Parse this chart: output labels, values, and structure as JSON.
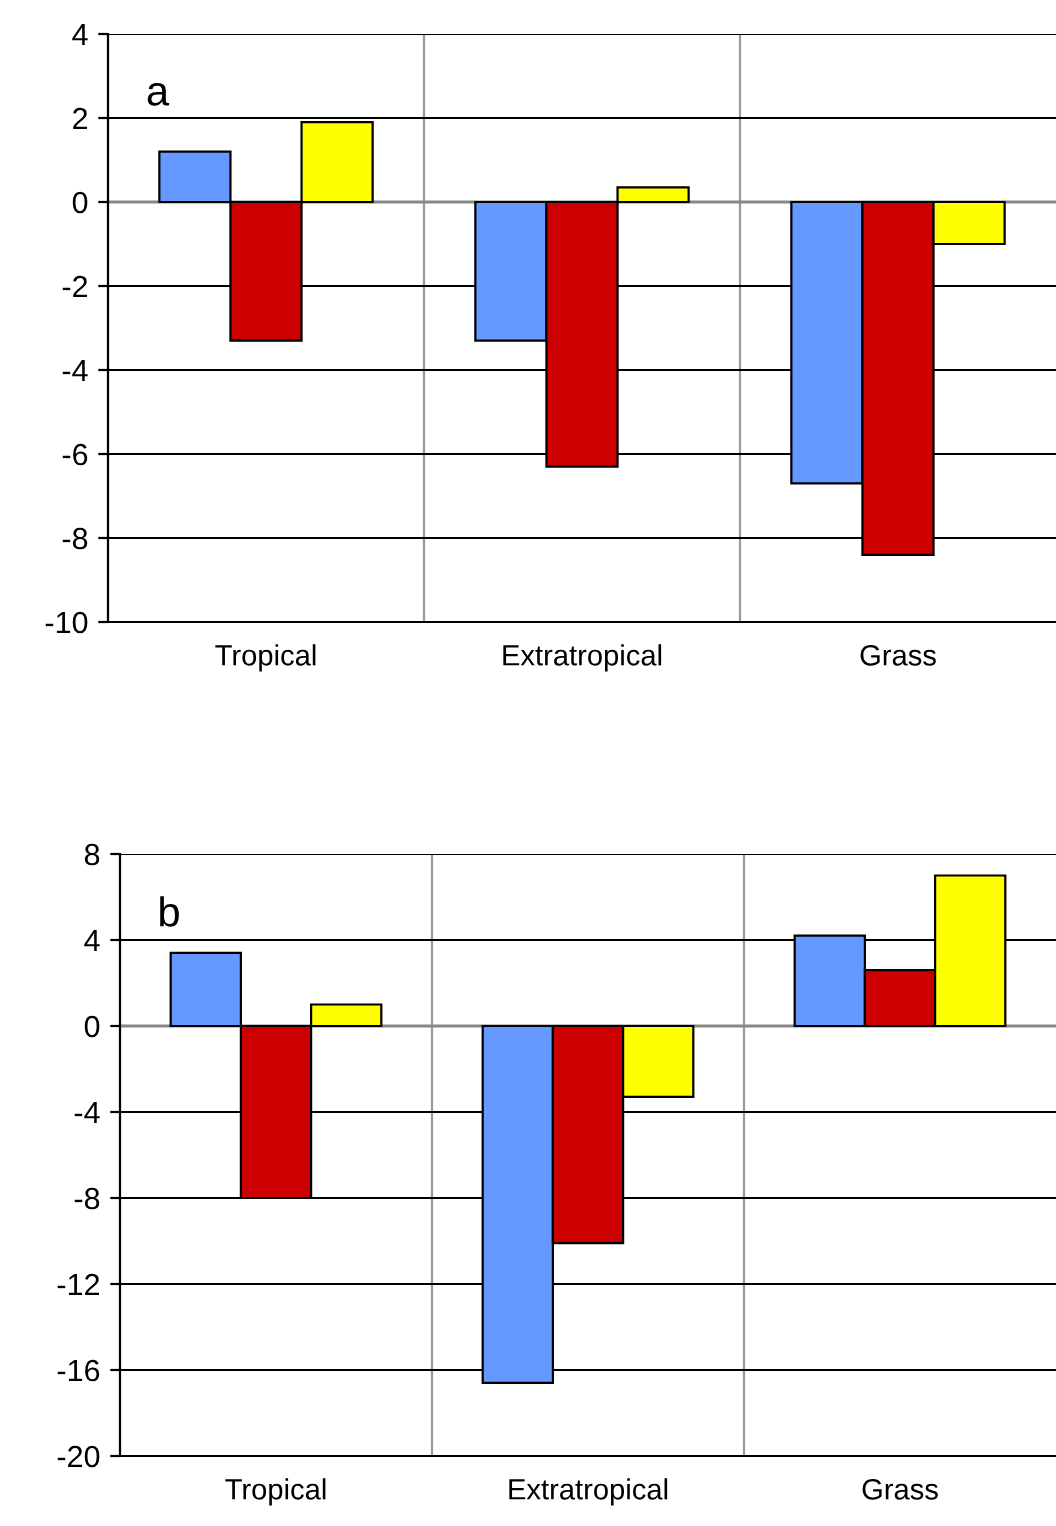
{
  "chart_data": [
    {
      "type": "bar",
      "categories": [
        "Tropical",
        "Extratropical",
        "Grass"
      ],
      "annotations": [
        "a"
      ],
      "ylim": [
        -10,
        4
      ],
      "yticks": [
        -10,
        -8,
        -6,
        -4,
        -2,
        0,
        2,
        4
      ],
      "grid": true,
      "series": [
        {
          "color": "#6699ff",
          "values": [
            1.2,
            -3.3,
            -6.7
          ]
        },
        {
          "color": "#cc0000",
          "values": [
            -3.3,
            -6.3,
            -8.4
          ]
        },
        {
          "color": "#ffff00",
          "values": [
            1.9,
            0.35,
            -1.0
          ]
        }
      ]
    },
    {
      "type": "bar",
      "categories": [
        "Tropical",
        "Extratropical",
        "Grass"
      ],
      "annotations": [
        "b"
      ],
      "ylim": [
        -20,
        8
      ],
      "yticks": [
        -20,
        -16,
        -12,
        -8,
        -4,
        0,
        4,
        8
      ],
      "grid": true,
      "series": [
        {
          "color": "#6699ff",
          "values": [
            3.4,
            -16.6,
            4.2
          ]
        },
        {
          "color": "#cc0000",
          "values": [
            -8.0,
            -10.1,
            2.6
          ]
        },
        {
          "color": "#ffff00",
          "values": [
            1.0,
            -3.3,
            7.0
          ]
        }
      ]
    }
  ]
}
